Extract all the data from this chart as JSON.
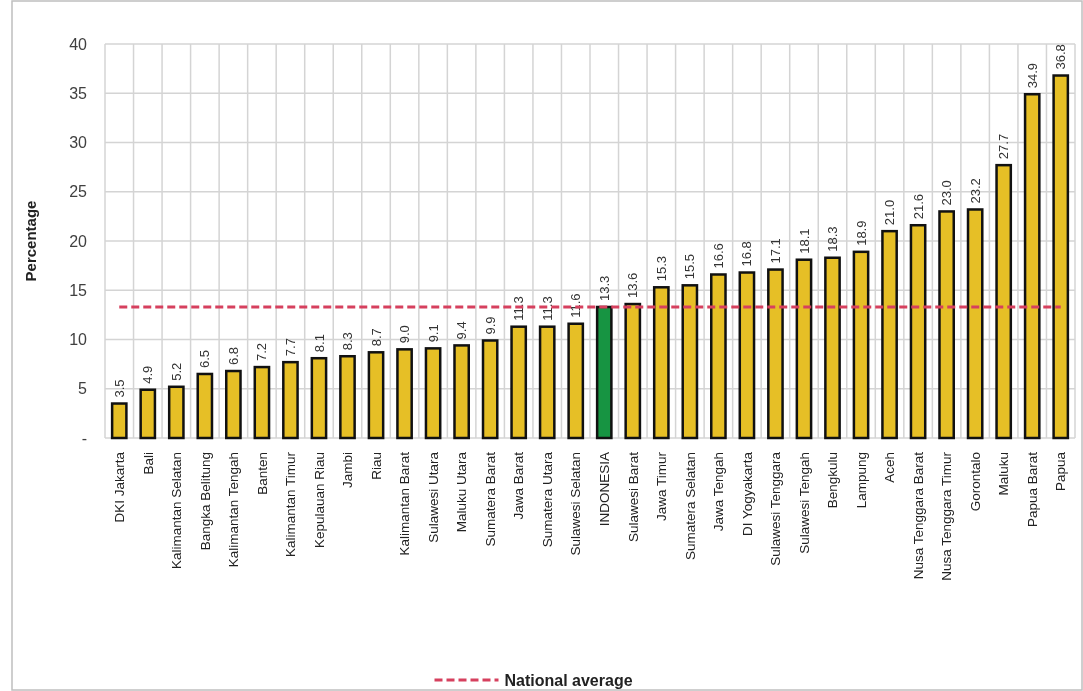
{
  "chart_data": {
    "type": "bar",
    "ylabel": "Percentage",
    "categories": [
      "DKI Jakarta",
      "Bali",
      "Kalimantan Selatan",
      "Bangka Belitung",
      "Kalimantan Tengah",
      "Banten",
      "Kalimantan Timur",
      "Kepulauan Riau",
      "Jambi",
      "Riau",
      "Kalimantan Barat",
      "Sulawesi Utara",
      "Maluku Utara",
      "Sumatera Barat",
      "Jawa Barat",
      "Sumatera Utara",
      "Sulawesi Selatan",
      "INDONESIA",
      "Sulawesi Barat",
      "Jawa Timur",
      "Sumatera Selatan",
      "Jawa Tengah",
      "DI Yogyakarta",
      "Sulawesi Tenggara",
      "Sulawesi Tengah",
      "Bengkulu",
      "Lampung",
      "Aceh",
      "Nusa Tenggara Barat",
      "Nusa Tenggara Timur",
      "Gorontalo",
      "Maluku",
      "Papua Barat",
      "Papua"
    ],
    "values": [
      3.5,
      4.9,
      5.2,
      6.5,
      6.8,
      7.2,
      7.7,
      8.1,
      8.3,
      8.7,
      9.0,
      9.1,
      9.4,
      9.9,
      11.3,
      11.3,
      11.6,
      13.3,
      13.6,
      15.3,
      15.5,
      16.6,
      16.8,
      17.1,
      18.1,
      18.3,
      18.9,
      21.0,
      21.6,
      23.0,
      23.2,
      27.7,
      34.9,
      36.8
    ],
    "value_labels": [
      "3.5",
      "4.9",
      "5.2",
      "6.5",
      "6.8",
      "7.2",
      "7.7",
      "8.1",
      "8.3",
      "8.7",
      "9.0",
      "9.1",
      "9.4",
      "9.9",
      "11.3",
      "11.3",
      "11.6",
      "13.3",
      "13.6",
      "15.3",
      "15.5",
      "16.6",
      "16.8",
      "17.1",
      "18.1",
      "18.3",
      "18.9",
      "21.0",
      "21.6",
      "23.0",
      "23.2",
      "27.7",
      "34.9",
      "36.8"
    ],
    "colors": [
      "#e6bf26",
      "#e6bf26",
      "#e6bf26",
      "#e6bf26",
      "#e6bf26",
      "#e6bf26",
      "#e6bf26",
      "#e6bf26",
      "#e6bf26",
      "#e6bf26",
      "#e6bf26",
      "#e6bf26",
      "#e6bf26",
      "#e6bf26",
      "#e6bf26",
      "#e6bf26",
      "#e6bf26",
      "#179442",
      "#e6bf26",
      "#e6bf26",
      "#e6bf26",
      "#e6bf26",
      "#e6bf26",
      "#e6bf26",
      "#e6bf26",
      "#e6bf26",
      "#e6bf26",
      "#e6bf26",
      "#e6bf26",
      "#e6bf26",
      "#e6bf26",
      "#e6bf26",
      "#e6bf26",
      "#e6bf26"
    ],
    "ylim": [
      0,
      40
    ],
    "yticks": [
      {
        "value": 0,
        "label": "-"
      },
      5,
      10,
      15,
      20,
      25,
      30,
      35,
      40
    ],
    "grid": true,
    "legend": "bottom",
    "ref_lines": [
      {
        "axis": "y",
        "value": 13.3,
        "label": "National average",
        "color": "#d6405e",
        "line_style": "dashed"
      }
    ]
  }
}
